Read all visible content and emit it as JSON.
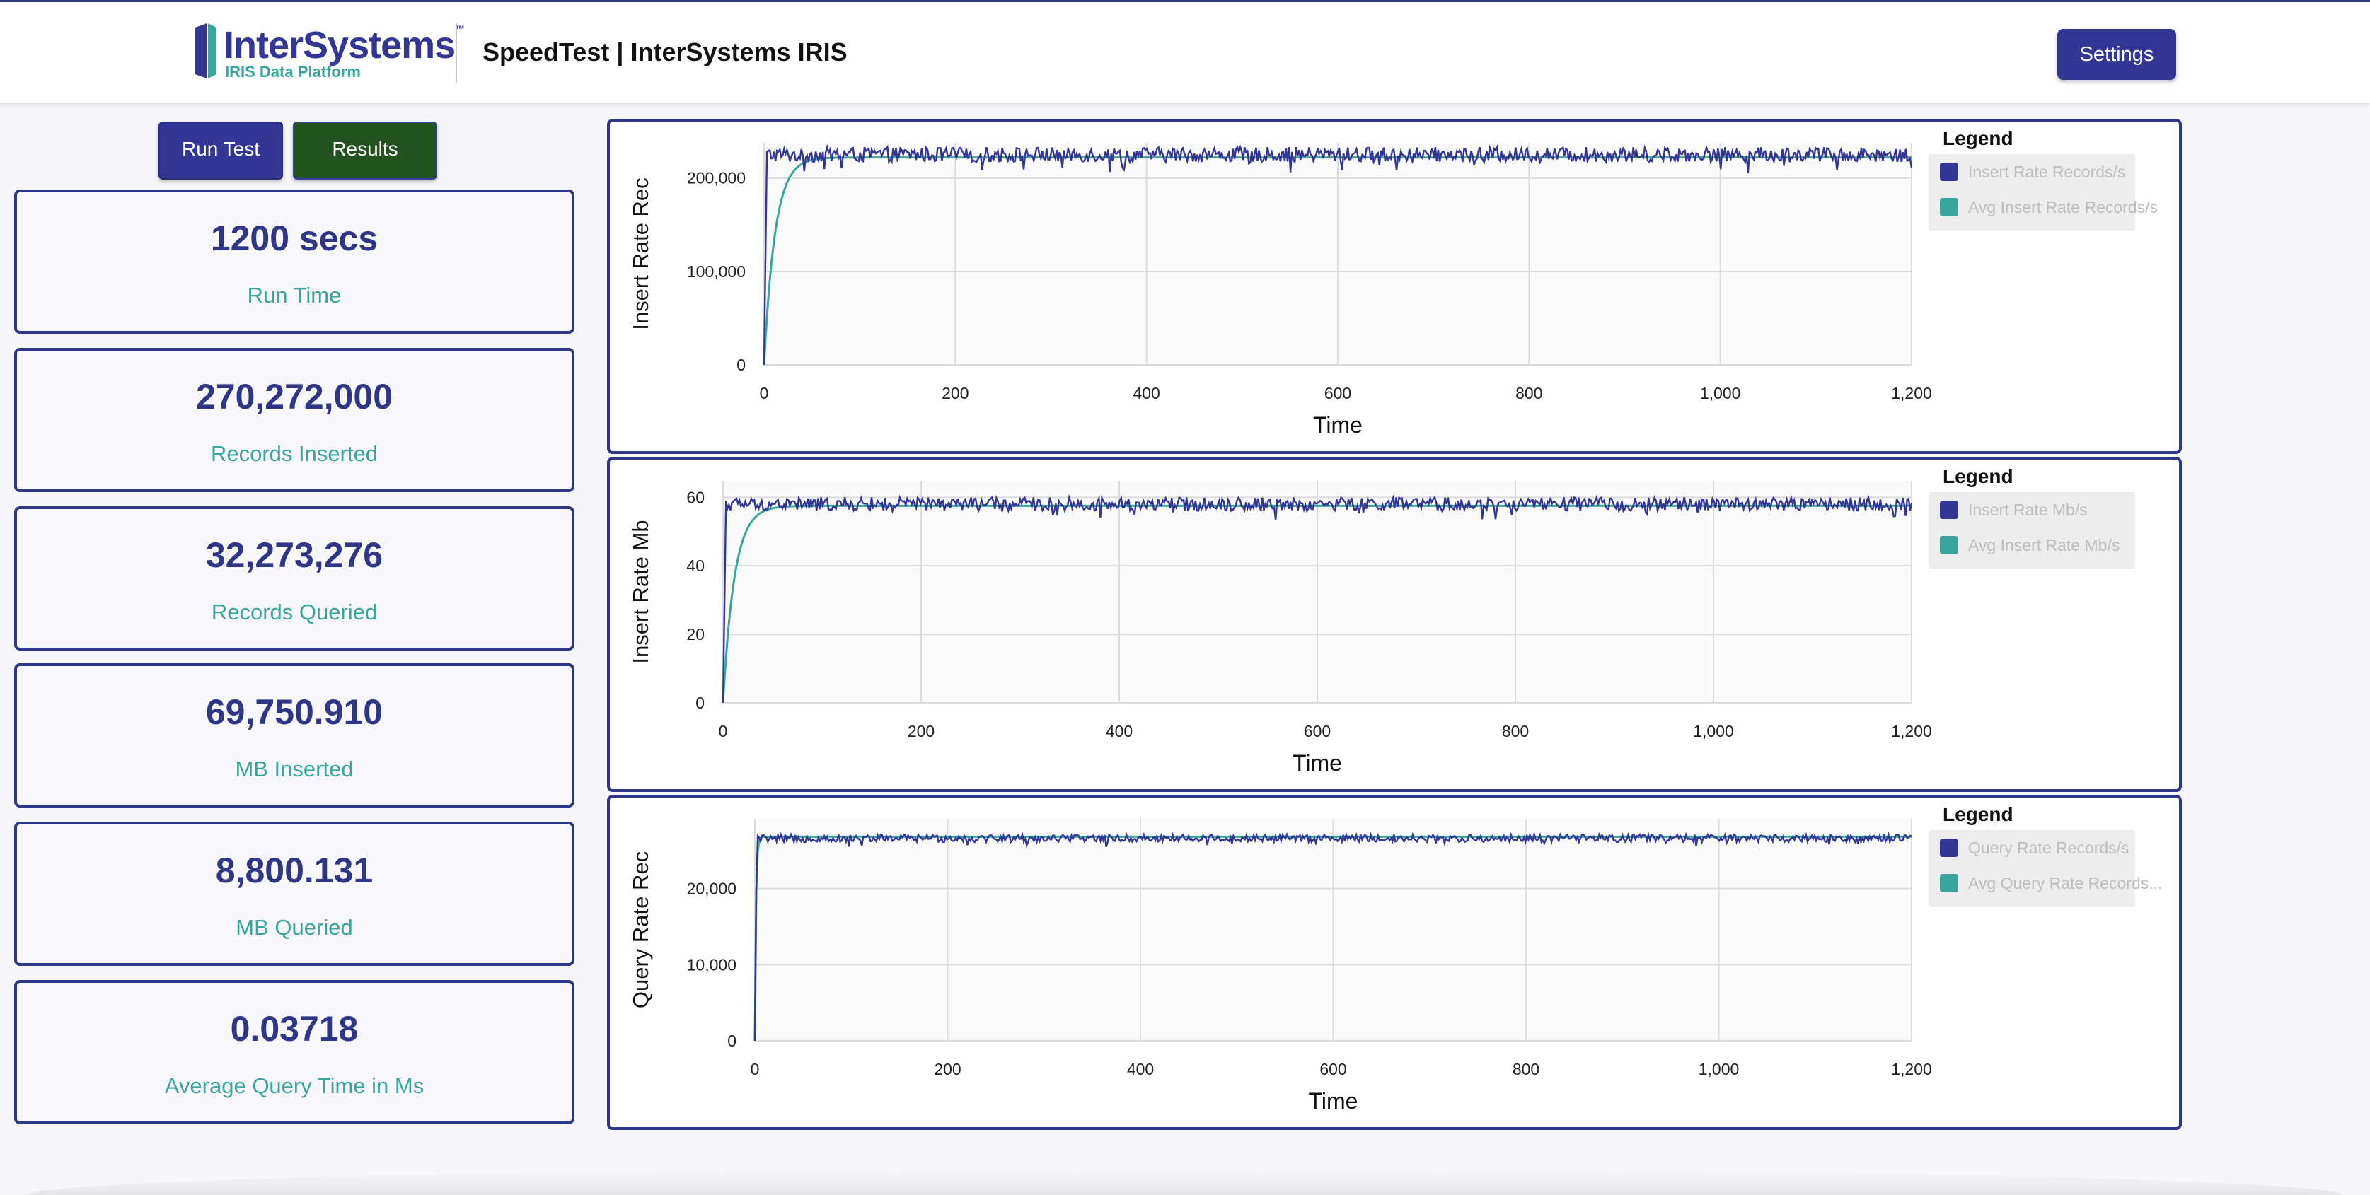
{
  "header": {
    "logo": {
      "name": "InterSystems",
      "tagline": "IRIS Data Platform"
    },
    "title": "SpeedTest | InterSystems IRIS",
    "settings_label": "Settings"
  },
  "controls": {
    "run_label": "Run Test",
    "results_label": "Results"
  },
  "stats": [
    {
      "value": "1200 secs",
      "label": "Run Time"
    },
    {
      "value": "270,272,000",
      "label": "Records Inserted"
    },
    {
      "value": "32,273,276",
      "label": "Records Queried"
    },
    {
      "value": "69,750.910",
      "label": "MB Inserted"
    },
    {
      "value": "8,800.131",
      "label": "MB Queried"
    },
    {
      "value": "0.03718",
      "label": "Average Query Time in Ms"
    }
  ],
  "colors": {
    "primary": "#333695",
    "accent": "#3aa69b",
    "results": "#22521d",
    "grid": "#dcdcdc"
  },
  "chart_data": [
    {
      "type": "line",
      "ylabel": "Insert Rate Rec",
      "xlabel": "Time",
      "xlim": [
        0,
        1200
      ],
      "ylim": [
        0,
        220000
      ],
      "xticks": [
        0,
        200,
        400,
        600,
        800,
        1000,
        1200
      ],
      "xtick_labels": [
        "0",
        "200",
        "400",
        "600",
        "800",
        "1,000",
        "1,200"
      ],
      "yticks": [
        0,
        100000,
        200000
      ],
      "ytick_labels": [
        "0",
        "100,000",
        "200,000"
      ],
      "legend_title": "Legend",
      "series": [
        {
          "name": "Insert Rate Records/s",
          "color": "#333695",
          "base": 225000,
          "noise": 8000,
          "ramp": 3
        },
        {
          "name": "Avg Insert Rate Records/s",
          "color": "#3aa69b",
          "base": 222000,
          "noise": 0,
          "ramp": 40
        }
      ]
    },
    {
      "type": "line",
      "ylabel": "Insert Rate Mb",
      "xlabel": "Time",
      "xlim": [
        0,
        1200
      ],
      "ylim": [
        0,
        60
      ],
      "xticks": [
        0,
        200,
        400,
        600,
        800,
        1000,
        1200
      ],
      "xtick_labels": [
        "0",
        "200",
        "400",
        "600",
        "800",
        "1,000",
        "1,200"
      ],
      "yticks": [
        0,
        20,
        40,
        60
      ],
      "ytick_labels": [
        "0",
        "20",
        "40",
        "60"
      ],
      "legend_title": "Legend",
      "series": [
        {
          "name": "Insert Rate Mb/s",
          "color": "#333695",
          "base": 58,
          "noise": 2,
          "ramp": 3
        },
        {
          "name": "Avg Insert Rate Mb/s",
          "color": "#3aa69b",
          "base": 57.5,
          "noise": 0,
          "ramp": 40
        }
      ]
    },
    {
      "type": "line",
      "ylabel": "Query Rate Rec",
      "xlabel": "Time",
      "xlim": [
        0,
        1200
      ],
      "ylim": [
        0,
        27000
      ],
      "xticks": [
        0,
        200,
        400,
        600,
        800,
        1000,
        1200
      ],
      "xtick_labels": [
        "0",
        "200",
        "400",
        "600",
        "800",
        "1,000",
        "1,200"
      ],
      "yticks": [
        0,
        10000,
        20000
      ],
      "ytick_labels": [
        "0",
        "10,000",
        "20,000"
      ],
      "legend_title": "Legend",
      "series": [
        {
          "name": "Query Rate Records/s",
          "color": "#333695",
          "base": 26600,
          "noise": 500,
          "ramp": 2
        },
        {
          "name": "Avg Query Rate Records...",
          "color": "#3aa69b",
          "base": 26800,
          "noise": 0,
          "ramp": 4
        }
      ]
    }
  ]
}
